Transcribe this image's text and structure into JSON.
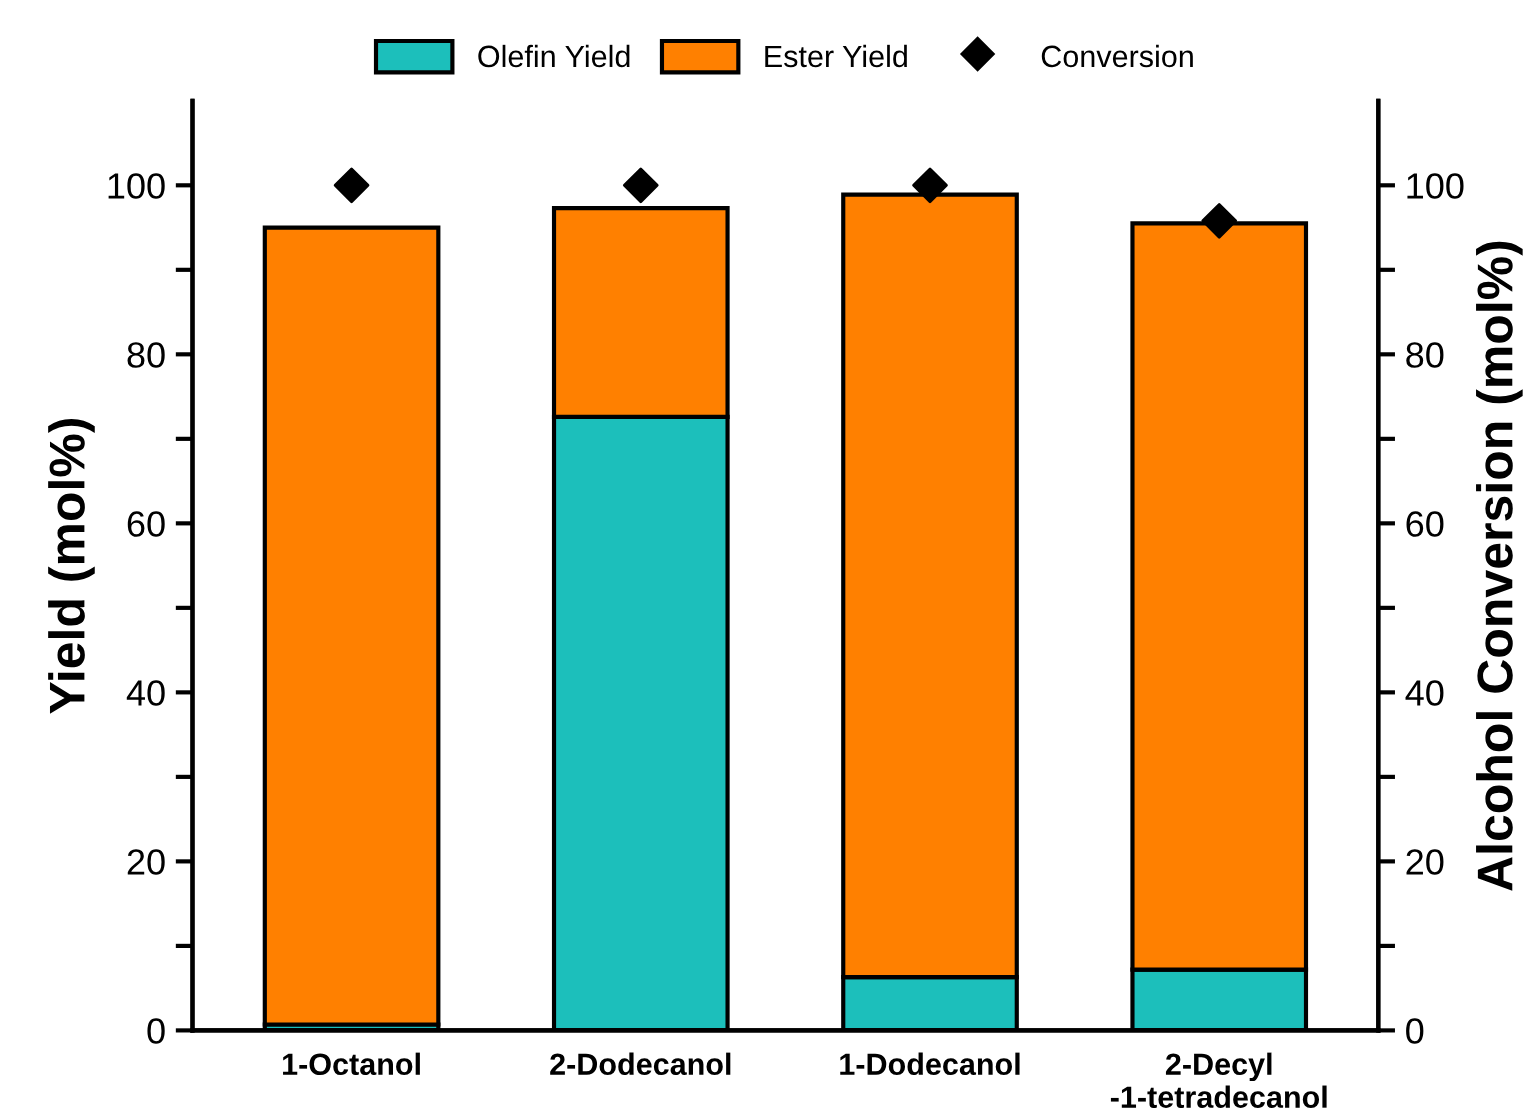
{
  "chart_data": {
    "type": "bar",
    "stacked": true,
    "ylabel": "Yield (mol%)",
    "y2label": "Alcohol Conversion (mol%)",
    "categories": [
      "1-Octanol",
      "2-Dodecanol",
      "1-Dodecanol",
      "2-Decyl\n-1-tetradecanol"
    ],
    "series": [
      {
        "name": "Olefin Yield",
        "color": "#1cbfbb",
        "values": [
          0.7,
          72.6,
          6.3,
          7.2
        ]
      },
      {
        "name": "Ester Yield",
        "color": "#ff8000",
        "values": [
          94.3,
          24.7,
          92.6,
          88.3
        ]
      },
      {
        "name": "Conversion",
        "type": "scatter",
        "marker": "diamond",
        "color": "#000000",
        "values": [
          100,
          100,
          100,
          95.8
        ]
      }
    ],
    "ylim": [
      0,
      110
    ],
    "yticks": [
      0,
      {
        "value": 10,
        "label": null
      },
      20,
      {
        "value": 30,
        "label": null
      },
      40,
      {
        "value": 50,
        "label": null
      },
      60,
      {
        "value": 70,
        "label": null
      },
      80,
      {
        "value": 90,
        "label": null
      },
      100
    ],
    "y2lim": [
      0,
      110
    ],
    "y2ticks": [
      0,
      {
        "value": 10,
        "label": null
      },
      20,
      {
        "value": 30,
        "label": null
      },
      40,
      {
        "value": 50,
        "label": null
      },
      60,
      {
        "value": 70,
        "label": null
      },
      80,
      {
        "value": 90,
        "label": null
      },
      100
    ],
    "legend": "top",
    "grid": false
  }
}
